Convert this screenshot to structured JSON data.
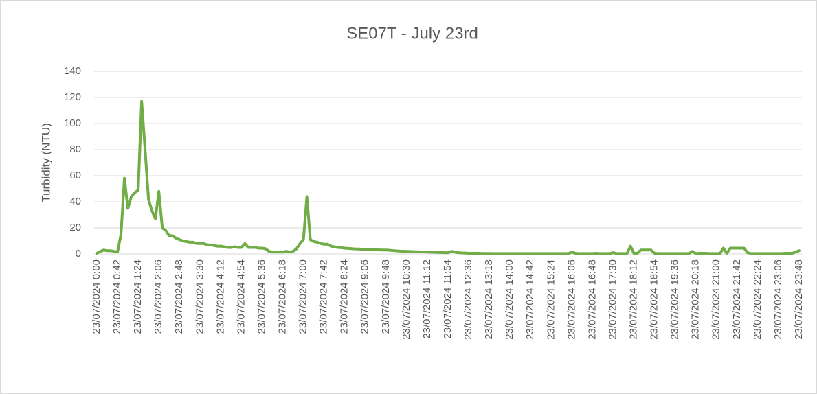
{
  "chart_data": {
    "type": "line",
    "title": "SE07T - July 23rd",
    "y_label": "Turbidity (NTU)",
    "categories": [
      "23/07/2024 0:00",
      null,
      null,
      null,
      null,
      null,
      "23/07/2024 0:42",
      null,
      null,
      null,
      null,
      null,
      "23/07/2024 1:24",
      null,
      null,
      null,
      null,
      null,
      "23/07/2024 2:06",
      null,
      null,
      null,
      null,
      null,
      "23/07/2024 2:48",
      null,
      null,
      null,
      null,
      null,
      "23/07/2024 3:30",
      null,
      null,
      null,
      null,
      null,
      "23/07/2024 4:12",
      null,
      null,
      null,
      null,
      null,
      "23/07/2024 4:54",
      null,
      null,
      null,
      null,
      null,
      "23/07/2024 5:36",
      null,
      null,
      null,
      null,
      null,
      "23/07/2024 6:18",
      null,
      null,
      null,
      null,
      null,
      "23/07/2024 7:00",
      null,
      null,
      null,
      null,
      null,
      "23/07/2024 7:42",
      null,
      null,
      null,
      null,
      null,
      "23/07/2024 8:24",
      null,
      null,
      null,
      null,
      null,
      "23/07/2024 9:06",
      null,
      null,
      null,
      null,
      null,
      "23/07/2024 9:48",
      null,
      null,
      null,
      null,
      null,
      "23/07/2024 10:30",
      null,
      null,
      null,
      null,
      null,
      "23/07/2024 11:12",
      null,
      null,
      null,
      null,
      null,
      "23/07/2024 11:54",
      null,
      null,
      null,
      null,
      null,
      "23/07/2024 12:36",
      null,
      null,
      null,
      null,
      null,
      "23/07/2024 13:18",
      null,
      null,
      null,
      null,
      null,
      "23/07/2024 14:00",
      null,
      null,
      null,
      null,
      null,
      "23/07/2024 14:42",
      null,
      null,
      null,
      null,
      null,
      "23/07/2024 15:24",
      null,
      null,
      null,
      null,
      null,
      "23/07/2024 16:06",
      null,
      null,
      null,
      null,
      null,
      "23/07/2024 16:48",
      null,
      null,
      null,
      null,
      null,
      "23/07/2024 17:30",
      null,
      null,
      null,
      null,
      null,
      "23/07/2024 18:12",
      null,
      null,
      null,
      null,
      null,
      "23/07/2024 18:54",
      null,
      null,
      null,
      null,
      null,
      "23/07/2024 19:36",
      null,
      null,
      null,
      null,
      null,
      "23/07/2024 20:18",
      null,
      null,
      null,
      null,
      null,
      "23/07/2024 21:00",
      null,
      null,
      null,
      null,
      null,
      "23/07/2024 21:42",
      null,
      null,
      null,
      null,
      null,
      "23/07/2024 22:24",
      null,
      null,
      null,
      null,
      null,
      "23/07/2024 23:06",
      null,
      null,
      null,
      null,
      null,
      "23/07/2024 23:48"
    ],
    "values": [
      0.5,
      2,
      3,
      2.5,
      2.5,
      2,
      1.5,
      15,
      58,
      35,
      44,
      47,
      49,
      117,
      80,
      42,
      33,
      27,
      48,
      20,
      18,
      14,
      14,
      12,
      11,
      10,
      9.5,
      9,
      9,
      8,
      8,
      8,
      7,
      7,
      6.5,
      6,
      6,
      5.5,
      5,
      5,
      5.5,
      5,
      5,
      8,
      5,
      5,
      5,
      4.5,
      4.5,
      4,
      2,
      1.5,
      1.5,
      1.5,
      1.5,
      2,
      1.5,
      2,
      4,
      8,
      11,
      44,
      11,
      9.5,
      9,
      8,
      7.5,
      7.5,
      6,
      5.5,
      5,
      4.8,
      4.5,
      4.3,
      4.1,
      3.9,
      3.8,
      3.6,
      3.5,
      3.4,
      3.3,
      3.2,
      3.1,
      3,
      3,
      2.8,
      2.6,
      2.4,
      2.2,
      2.1,
      2,
      1.9,
      1.8,
      1.7,
      1.6,
      1.6,
      1.5,
      1.4,
      1.3,
      1.2,
      1.1,
      1,
      1,
      2,
      1.5,
      1,
      0.8,
      0.7,
      0.5,
      0.5,
      0.5,
      0.5,
      0.4,
      0.4,
      0.4,
      0.3,
      0.3,
      0.3,
      0.3,
      0.3,
      0.3,
      0.3,
      0.3,
      0.3,
      0.3,
      0.3,
      0.3,
      0.3,
      0.3,
      0.3,
      0.3,
      0.3,
      0.3,
      0.3,
      0.3,
      0.3,
      0.3,
      0.3,
      1.5,
      0.5,
      0.3,
      0.3,
      0.3,
      0.3,
      0.3,
      0.5,
      0.3,
      0.3,
      0.3,
      0.3,
      1,
      0.3,
      0.3,
      0.3,
      0.3,
      6,
      0.5,
      0.5,
      3,
      3,
      3,
      3,
      0.5,
      0.3,
      0.3,
      0.3,
      0.3,
      0.3,
      0.3,
      0.3,
      0.3,
      0.3,
      0.3,
      2,
      0.3,
      0.5,
      0.5,
      0.5,
      0.3,
      0.3,
      0.3,
      0.3,
      4.5,
      0.5,
      4.5,
      4.5,
      4.5,
      4.5,
      4.5,
      1,
      0.3,
      0.3,
      0.3,
      0.3,
      0.3,
      0.3,
      0.3,
      0.3,
      0.3,
      0.3,
      0.5,
      0.5,
      0.5,
      1.5,
      2.5
    ],
    "color": "#70ad47",
    "ylim": [
      0,
      140
    ],
    "yticks": [
      0,
      20,
      40,
      60,
      80,
      100,
      120,
      140
    ],
    "grid": true
  }
}
